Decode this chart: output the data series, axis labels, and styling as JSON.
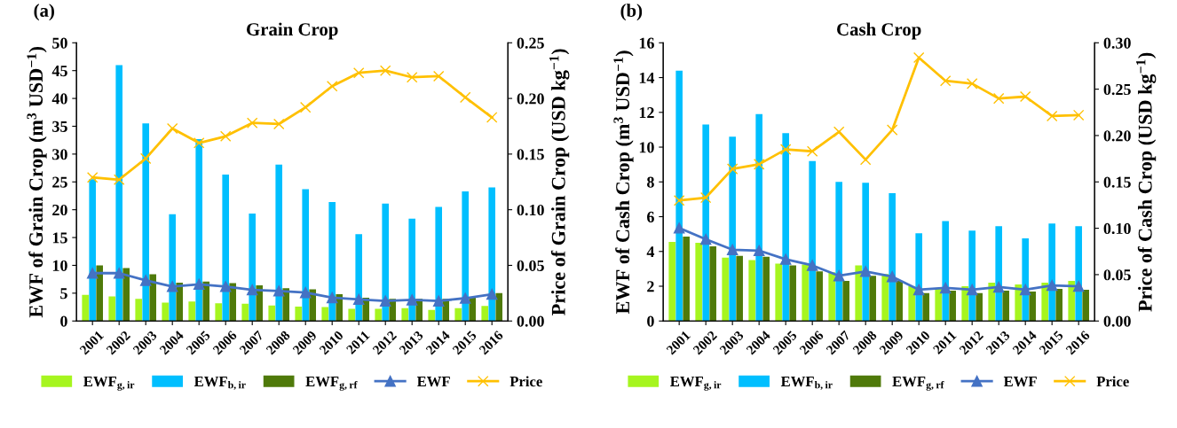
{
  "chart_data": [
    {
      "type": "bar",
      "title": "Grain Crop",
      "ylabel": "EWF of Grain Crop (m$^{3}$ USD$^{−1}$)",
      "y2label": "Price of Grain Crop (USD kg$^{−1}$)",
      "annotations": [
        "(a)"
      ],
      "categories": [
        "2001",
        "2002",
        "2003",
        "2004",
        "2005",
        "2006",
        "2007",
        "2008",
        "2009",
        "2010",
        "2011",
        "2012",
        "2013",
        "2014",
        "2015",
        "2016"
      ],
      "series": [
        {
          "name": "EWF$_{g,ir}$",
          "color": "#a6f51f",
          "values": [
            4.7,
            4.4,
            4.0,
            3.3,
            3.5,
            3.2,
            3.1,
            2.8,
            2.6,
            2.5,
            2.2,
            2.2,
            2.3,
            2.0,
            2.3,
            2.7
          ]
        },
        {
          "name": "EWF$_{b,ir}$",
          "color": "#00bfff",
          "values": [
            25.5,
            46,
            35.5,
            19.2,
            32.7,
            26.3,
            19.3,
            28.1,
            23.7,
            21.4,
            15.6,
            21.1,
            18.4,
            20.5,
            23.3,
            24.0
          ]
        },
        {
          "name": "EWF$_{g,rf}$",
          "color": "#4f7a0a",
          "values": [
            10.0,
            9.5,
            8.4,
            6.9,
            7.1,
            6.8,
            6.4,
            5.9,
            5.7,
            4.8,
            4.2,
            4.0,
            4.0,
            4.0,
            4.2,
            5.0
          ]
        },
        {
          "name": "EWF",
          "type": "line",
          "color": "#4472c4",
          "marker": "triangle",
          "values": [
            8.6,
            8.6,
            7.3,
            6.2,
            6.6,
            6.2,
            5.6,
            5.4,
            5.1,
            4.2,
            3.9,
            3.6,
            3.8,
            3.6,
            4.1,
            4.8
          ]
        },
        {
          "name": "Price",
          "type": "line",
          "axis": "y2",
          "color": "#ffc000",
          "marker": "cross",
          "values": [
            0.129,
            0.127,
            0.146,
            0.173,
            0.16,
            0.166,
            0.178,
            0.177,
            0.192,
            0.211,
            0.223,
            0.225,
            0.219,
            0.22,
            0.201,
            0.183
          ]
        }
      ],
      "ylim": [
        0,
        50
      ],
      "yticks": [
        0,
        5,
        10,
        15,
        20,
        25,
        30,
        35,
        40,
        45,
        50
      ],
      "y2lim": [
        0,
        0.25
      ],
      "y2ticks": [
        {
          "value": 0,
          "label": "0.00"
        },
        {
          "value": 0.05,
          "label": "0.05"
        },
        {
          "value": 0.1,
          "label": "0.10"
        },
        {
          "value": 0.15,
          "label": "0.15"
        },
        {
          "value": 0.2,
          "label": "0.20"
        },
        {
          "value": 0.25,
          "label": "0.25"
        }
      ],
      "legend": "bottom",
      "grid": false
    },
    {
      "type": "bar",
      "title": "Cash Crop",
      "ylabel": "EWF of Cash Crop (m$^{3}$ USD$^{−1}$)",
      "y2label": "Price of Cash Crop (USD kg$^{−1}$)",
      "annotations": [
        "(b)"
      ],
      "categories": [
        "2001",
        "2002",
        "2003",
        "2004",
        "2005",
        "2006",
        "2007",
        "2008",
        "2009",
        "2010",
        "2011",
        "2012",
        "2013",
        "2014",
        "2015",
        "2016"
      ],
      "series": [
        {
          "name": "EWF$_{g,ir}$",
          "color": "#a6f51f",
          "values": [
            4.55,
            4.5,
            3.65,
            3.5,
            3.3,
            3.25,
            2.8,
            3.2,
            2.7,
            2.0,
            1.9,
            2.0,
            2.2,
            2.1,
            2.2,
            2.3
          ]
        },
        {
          "name": "EWF$_{b,ir}$",
          "color": "#00bfff",
          "values": [
            14.4,
            11.3,
            10.6,
            11.9,
            10.8,
            9.2,
            8.0,
            7.95,
            7.35,
            5.05,
            5.75,
            5.2,
            5.45,
            4.75,
            5.6,
            5.45
          ]
        },
        {
          "name": "EWF$_{g,rf}$",
          "color": "#4f7a0a",
          "values": [
            4.85,
            4.3,
            3.75,
            3.7,
            3.2,
            2.85,
            2.3,
            2.6,
            2.3,
            1.6,
            1.75,
            1.6,
            1.75,
            1.7,
            1.85,
            1.8
          ]
        },
        {
          "name": "EWF",
          "type": "line",
          "color": "#4472c4",
          "marker": "triangle",
          "values": [
            5.35,
            4.7,
            4.1,
            4.05,
            3.55,
            3.2,
            2.6,
            2.85,
            2.55,
            1.8,
            1.9,
            1.8,
            1.95,
            1.8,
            2.05,
            2.0
          ]
        },
        {
          "name": "Price",
          "type": "line",
          "axis": "y2",
          "color": "#ffc000",
          "marker": "cross",
          "values": [
            0.13,
            0.133,
            0.164,
            0.169,
            0.185,
            0.183,
            0.204,
            0.174,
            0.206,
            0.284,
            0.259,
            0.256,
            0.24,
            0.242,
            0.221,
            0.222
          ]
        }
      ],
      "ylim": [
        0,
        16
      ],
      "yticks": [
        0,
        2,
        4,
        6,
        8,
        10,
        12,
        14,
        16
      ],
      "y2lim": [
        0,
        0.3
      ],
      "y2ticks": [
        {
          "value": 0,
          "label": "0.00"
        },
        {
          "value": 0.05,
          "label": "0.05"
        },
        {
          "value": 0.1,
          "label": "0.10"
        },
        {
          "value": 0.15,
          "label": "0.15"
        },
        {
          "value": 0.2,
          "label": "0.20"
        },
        {
          "value": 0.25,
          "label": "0.25"
        },
        {
          "value": 0.3,
          "label": "0.30"
        }
      ],
      "legend": "bottom",
      "grid": false
    }
  ]
}
